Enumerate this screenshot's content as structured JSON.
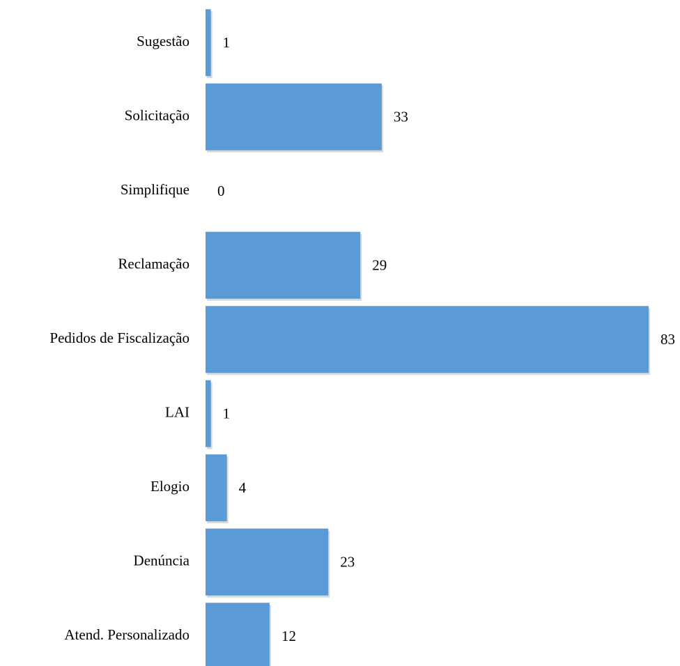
{
  "chart_data": {
    "type": "bar",
    "orientation": "horizontal",
    "categories": [
      "Sugestão",
      "Solicitação",
      "Simplifique",
      "Reclamação",
      "Pedidos de Fiscalização",
      "LAI",
      "Elogio",
      "Denúncia",
      "Atend. Personalizado"
    ],
    "values": [
      1,
      33,
      0,
      29,
      83,
      1,
      4,
      23,
      12
    ],
    "data_labels": [
      "1",
      "33",
      "0",
      "29",
      "83",
      "1",
      "4",
      "23",
      "12"
    ],
    "title": "",
    "xlabel": "",
    "ylabel": "",
    "xlim": [
      0,
      83
    ],
    "grid": false,
    "legend": "none",
    "bar_color": "#5B9BD5",
    "bar_shadow_color": "#C9C9C9",
    "text_color": "#000000"
  }
}
